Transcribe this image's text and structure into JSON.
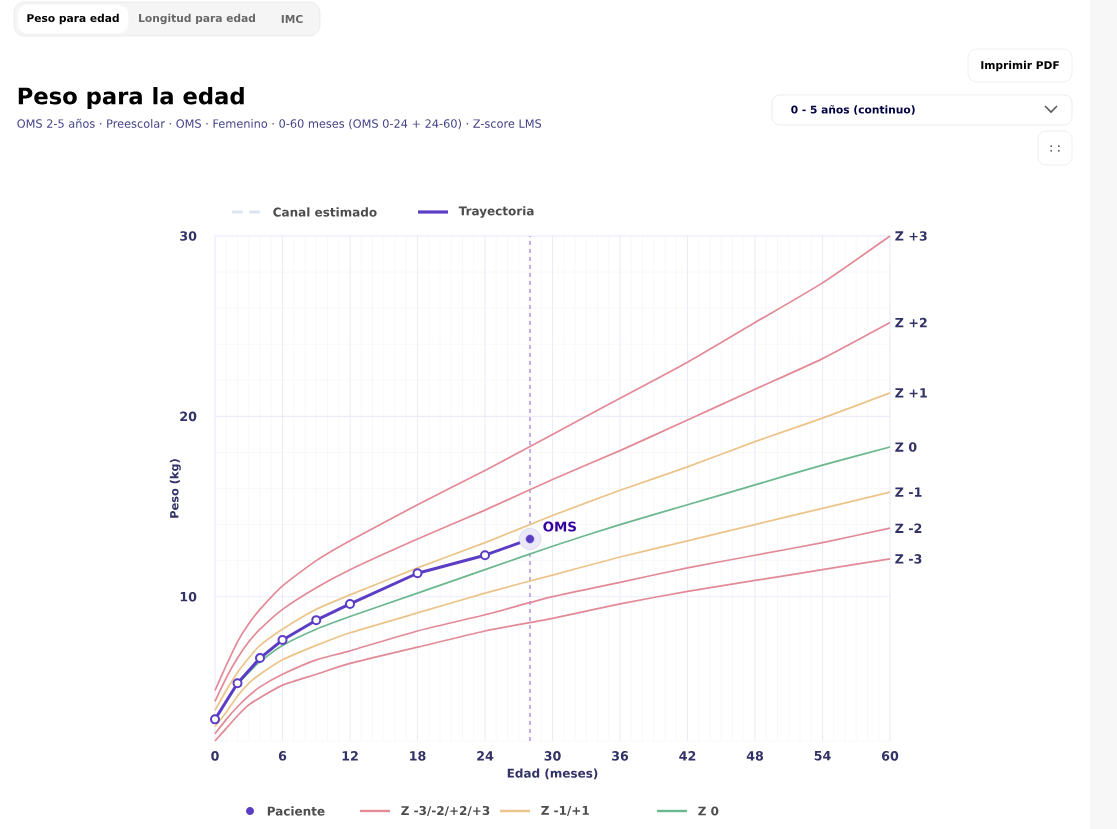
{
  "chart_data": {
    "type": "line",
    "title": "Peso para la edad",
    "subtitle": "OMS 2-5 años · Preescolar · OMS · Femenino · 0-60 meses (OMS 0-24 + 24-60) · Z-score LMS",
    "xlabel": "Edad (meses)",
    "ylabel": "Peso (kg)",
    "xlim": [
      0,
      60
    ],
    "ylim": [
      2,
      30
    ],
    "xticks": [
      0,
      6,
      12,
      18,
      24,
      30,
      36,
      42,
      48,
      54,
      60
    ],
    "yticks": [
      10,
      20,
      30
    ],
    "grid": true,
    "legend": "bottom left",
    "x": [
      0,
      1,
      2,
      3,
      4,
      6,
      9,
      12,
      18,
      24,
      30,
      36,
      42,
      48,
      54,
      60
    ],
    "series": [
      {
        "name": "Z +3",
        "color": "#e38a98",
        "values": [
          4.8,
          6.2,
          7.5,
          8.5,
          9.3,
          10.6,
          12.0,
          13.1,
          15.1,
          17.0,
          19.0,
          21.0,
          23.0,
          25.2,
          27.4,
          30.0
        ]
      },
      {
        "name": "Z +2",
        "color": "#e38a98",
        "values": [
          4.2,
          5.5,
          6.6,
          7.5,
          8.2,
          9.3,
          10.5,
          11.5,
          13.2,
          14.8,
          16.5,
          18.1,
          19.8,
          21.5,
          23.2,
          25.2
        ]
      },
      {
        "name": "Z +1",
        "color": "#ecc48a",
        "values": [
          3.7,
          4.8,
          5.8,
          6.6,
          7.3,
          8.2,
          9.3,
          10.1,
          11.6,
          13.0,
          14.5,
          15.9,
          17.2,
          18.6,
          19.9,
          21.3
        ]
      },
      {
        "name": "Z 0",
        "color": "#6bb88e",
        "values": [
          3.2,
          4.2,
          5.1,
          5.8,
          6.4,
          7.3,
          8.2,
          8.9,
          10.2,
          11.5,
          12.8,
          14.0,
          15.1,
          16.2,
          17.3,
          18.3
        ]
      },
      {
        "name": "Z -1",
        "color": "#ecc48a",
        "values": [
          2.8,
          3.6,
          4.5,
          5.2,
          5.7,
          6.5,
          7.3,
          8.0,
          9.1,
          10.2,
          11.2,
          12.2,
          13.1,
          14.0,
          14.9,
          15.8
        ]
      },
      {
        "name": "Z -2",
        "color": "#e38a98",
        "values": [
          2.4,
          3.2,
          3.9,
          4.5,
          5.0,
          5.7,
          6.5,
          7.0,
          8.1,
          9.0,
          10.0,
          10.8,
          11.6,
          12.3,
          13.0,
          13.8
        ]
      },
      {
        "name": "Z -3",
        "color": "#e38a98",
        "values": [
          2.0,
          2.7,
          3.4,
          4.0,
          4.4,
          5.1,
          5.7,
          6.3,
          7.2,
          8.1,
          8.8,
          9.6,
          10.3,
          10.9,
          11.5,
          12.1
        ]
      },
      {
        "name": "Trayectoria",
        "color": "#5b3cc4",
        "marker": "circle",
        "x": [
          0,
          2,
          4,
          6,
          9,
          12,
          18,
          24,
          28
        ],
        "values": [
          3.2,
          5.2,
          6.6,
          7.6,
          8.7,
          9.6,
          11.3,
          12.3,
          13.2
        ]
      },
      {
        "name": "Paciente",
        "type": "scatter",
        "color": "#5b3cc4",
        "marker": "circle",
        "x": [
          28
        ],
        "values": [
          13.2
        ]
      },
      {
        "name": "Canal estimado",
        "color": "#dde3f0",
        "line_style": "dashed",
        "values": [
          null,
          null,
          null,
          null,
          null,
          null,
          null,
          null,
          null,
          null,
          null,
          null,
          null,
          null,
          null,
          null
        ]
      }
    ],
    "ref_lines": [
      {
        "axis": "x",
        "value": 28,
        "color": "#a98be6",
        "line_style": "dashed"
      }
    ],
    "annotations": [
      {
        "text": "OMS",
        "x": 28,
        "y": 13.2
      },
      "Z -3/-2/+2/+3",
      "Z -1/+1",
      "Z 0",
      "Peso para edad",
      "Longitud para edad",
      "IMC",
      "Imprimir PDF",
      "0 - 5 años (continuo)"
    ]
  }
}
